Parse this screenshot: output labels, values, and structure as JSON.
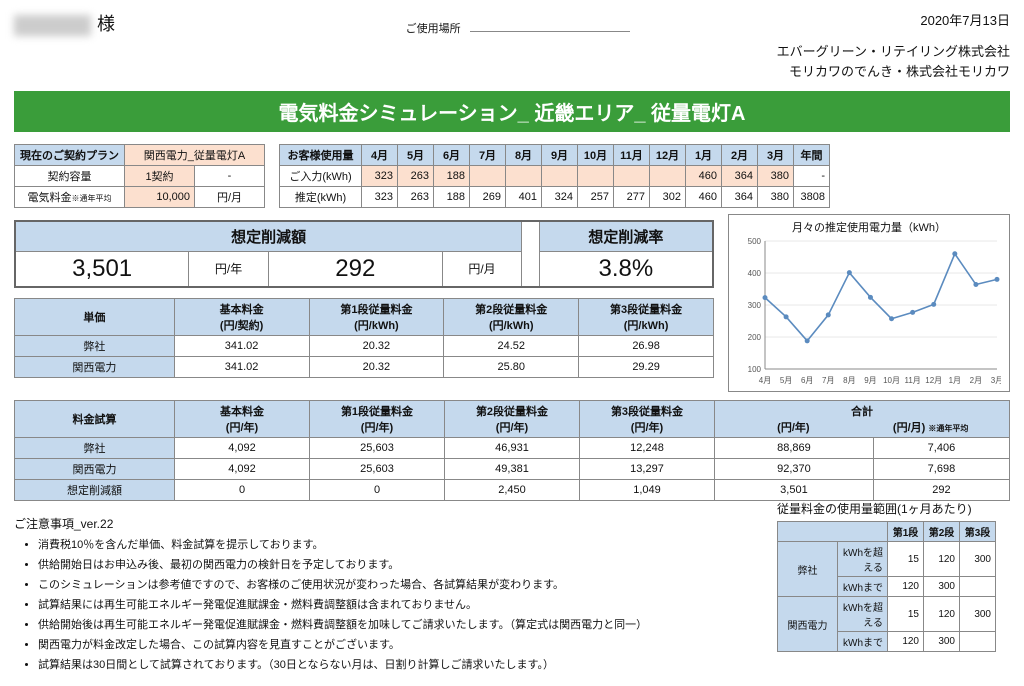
{
  "date": "2020年7月13日",
  "customer_suffix": "様",
  "usage_location_label": "ご使用場所",
  "company1": "エバーグリーン・リテイリング株式会社",
  "company2": "モリカワのでんき・株式会社モリカワ",
  "banner": "電気料金シミュレーション_ 近畿エリア_ 従量電灯A",
  "plan": {
    "header": "現在のご契約プラン",
    "plan_name": "関西電力_従量電灯A",
    "cap_label": "契約容量",
    "cap_val": "1契約",
    "cap_unit": "-",
    "fee_label": "電気料金",
    "fee_note": "※通年平均",
    "fee_val": "10,000",
    "fee_unit": "円/月"
  },
  "usage": {
    "row0_label": "お客様使用量",
    "months": [
      "4月",
      "5月",
      "6月",
      "7月",
      "8月",
      "9月",
      "10月",
      "11月",
      "12月",
      "1月",
      "2月",
      "3月",
      "年間"
    ],
    "input_label": "ご入力(kWh)",
    "input_vals": [
      "323",
      "263",
      "188",
      "",
      "",
      "",
      "",
      "",
      "",
      "460",
      "364",
      "380",
      "-"
    ],
    "est_label": "推定(kWh)",
    "est_vals": [
      "323",
      "263",
      "188",
      "269",
      "401",
      "324",
      "257",
      "277",
      "302",
      "460",
      "364",
      "380",
      "3808"
    ]
  },
  "savings": {
    "amt_label": "想定削減額",
    "rate_label": "想定削減率",
    "yr_val": "3,501",
    "yr_unit": "円/年",
    "mo_val": "292",
    "mo_unit": "円/月",
    "rate": "3.8%"
  },
  "chart": {
    "title": "月々の推定使用電力量（kWh）",
    "ylim": [
      100,
      500
    ],
    "yticks": [
      100,
      200,
      300,
      400,
      500
    ],
    "xlabels": [
      "4月",
      "5月",
      "6月",
      "7月",
      "8月",
      "9月",
      "10月",
      "11月",
      "12月",
      "1月",
      "2月",
      "3月"
    ],
    "values": [
      323,
      263,
      188,
      269,
      401,
      324,
      257,
      277,
      302,
      460,
      364,
      380
    ],
    "line_color": "#5b8bbf",
    "grid_color": "#d0d0d0",
    "axis_color": "#888",
    "text_color": "#555",
    "font_size_tick": 8
  },
  "unit": {
    "headers": [
      "単価",
      "基本料金\n(円/契約)",
      "第1段従量料金\n(円/kWh)",
      "第2段従量料金\n(円/kWh)",
      "第3段従量料金\n(円/kWh)"
    ],
    "ours_label": "弊社",
    "kansai_label": "関西電力",
    "ours": [
      "341.02",
      "20.32",
      "24.52",
      "26.98"
    ],
    "kansai": [
      "341.02",
      "20.32",
      "25.80",
      "29.29"
    ]
  },
  "cost": {
    "headers": [
      "料金試算",
      "基本料金\n(円/年)",
      "第1段従量料金\n(円/年)",
      "第2段従量料金\n(円/年)",
      "第3段従量料金\n(円/年)",
      "合計"
    ],
    "sum_y": "(円/年)",
    "sum_m": "(円/月)",
    "sum_note": "※通年平均",
    "ours_label": "弊社",
    "kansai_label": "関西電力",
    "diff_label": "想定削減額",
    "ours": [
      "4,092",
      "25,603",
      "46,931",
      "12,248",
      "88,869",
      "7,406"
    ],
    "kansai": [
      "4,092",
      "25,603",
      "49,381",
      "13,297",
      "92,370",
      "7,698"
    ],
    "diff": [
      "0",
      "0",
      "2,450",
      "1,049",
      "3,501",
      "292"
    ]
  },
  "notes": {
    "title": "ご注意事項_ver.22",
    "items": [
      "消費税10％を含んだ単価、料金試算を提示しております。",
      "供給開始日はお申込み後、最初の関西電力の検針日を予定しております。",
      "このシミュレーションは参考値ですので、お客様のご使用状況が変わった場合、各試算結果が変わります。",
      "試算結果には再生可能エネルギー発電促進賦課金・燃料費調整額は含まれておりません。",
      "供給開始後は再生可能エネルギー発電促進賦課金・燃料費調整額を加味してご請求いたします。（算定式は関西電力と同一）",
      "関西電力が料金改定した場合、この試算内容を見直すことがございます。",
      "試算結果は30日間として試算されております。（30日とならない月は、日割り計算しご請求いたします。）"
    ]
  },
  "range": {
    "title": "従量料金の使用量範囲(1ヶ月あたり)",
    "tiers": [
      "第1段",
      "第2段",
      "第3段"
    ],
    "ours_label": "弊社",
    "kansai_label": "関西電力",
    "over_label": "kWhを超える",
    "upto_label": "kWhまで",
    "ours_over": [
      "15",
      "120",
      "300"
    ],
    "ours_upto": [
      "120",
      "300",
      ""
    ],
    "kansai_over": [
      "15",
      "120",
      "300"
    ],
    "kansai_upto": [
      "120",
      "300",
      ""
    ]
  }
}
